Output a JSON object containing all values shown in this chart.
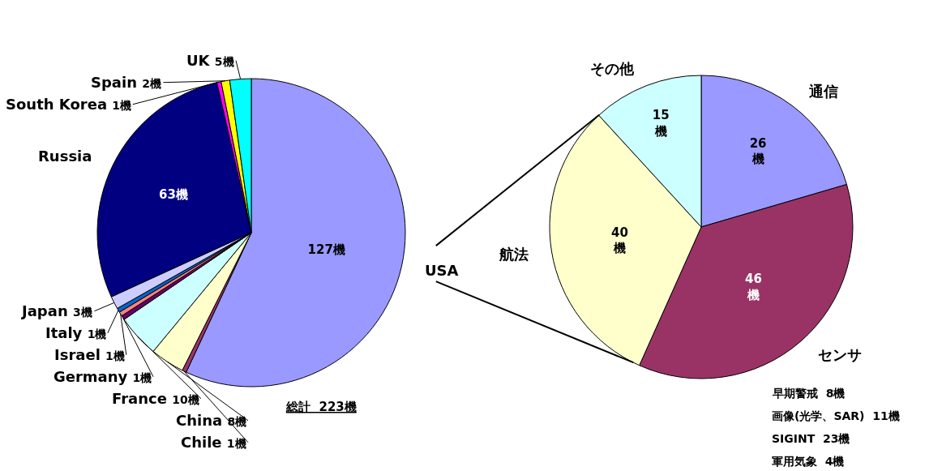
{
  "chart_data": [
    {
      "type": "pie",
      "categories": [
        "USA",
        "Chile",
        "China",
        "France",
        "Germany",
        "Israel",
        "Italy",
        "Japan",
        "Russia",
        "South Korea",
        "Spain",
        "UK"
      ],
      "values": [
        127,
        1,
        8,
        10,
        1,
        1,
        1,
        3,
        63,
        1,
        2,
        5
      ],
      "colors": [
        "#9999ff",
        "#993366",
        "#ffffcc",
        "#ccffff",
        "#660066",
        "#ff8080",
        "#0066cc",
        "#ccccff",
        "#000080",
        "#ff00ff",
        "#ffff00",
        "#00ffff"
      ],
      "value_labels": [
        "127機",
        "1機",
        "8機",
        "10機",
        "1機",
        "1機",
        "1機",
        "3機",
        "63機",
        "1機",
        "2機",
        "5機"
      ],
      "annotations": [
        "総計  223機"
      ]
    },
    {
      "type": "pie",
      "categories": [
        "通信",
        "センサ",
        "航法",
        "その他"
      ],
      "values": [
        26,
        46,
        40,
        15
      ],
      "colors": [
        "#9999ff",
        "#993366",
        "#ffffcc",
        "#ccffff"
      ],
      "value_labels": [
        "26\n機",
        "46\n機",
        "40\n機",
        "15\n機"
      ],
      "annotations": [
        "早期警戒  8機",
        "画像(光学、SAR)  11機",
        "SIGINT  23機",
        "軍用気象  4機"
      ]
    }
  ]
}
